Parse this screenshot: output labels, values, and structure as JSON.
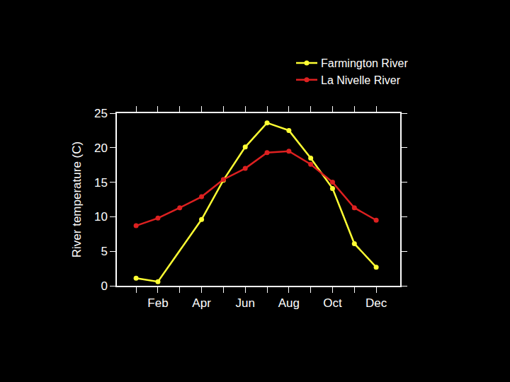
{
  "chart_data": {
    "type": "line",
    "y_label": "River temperature (C)",
    "categories": [
      null,
      "Feb",
      null,
      "Apr",
      null,
      "Jun",
      null,
      "Aug",
      null,
      "Oct",
      null,
      "Dec"
    ],
    "series": [
      {
        "name": "Farmington River",
        "color": "#ffff33",
        "marker": "circle",
        "line_style": "solid",
        "values": [
          1.1,
          0.6,
          null,
          9.6,
          15.3,
          20.1,
          23.6,
          22.5,
          18.5,
          14.1,
          6.1,
          2.7
        ]
      },
      {
        "name": "La Nivelle River",
        "color": "#dd2020",
        "marker": "circle",
        "line_style": "solid",
        "values": [
          8.7,
          9.8,
          11.3,
          12.9,
          15.4,
          17.0,
          19.3,
          19.5,
          17.6,
          15.0,
          11.3,
          9.5
        ]
      }
    ],
    "ylim": [
      0,
      25
    ],
    "yticks": [
      0,
      5,
      10,
      15,
      20,
      25
    ],
    "grid": false,
    "legend": "top right"
  }
}
